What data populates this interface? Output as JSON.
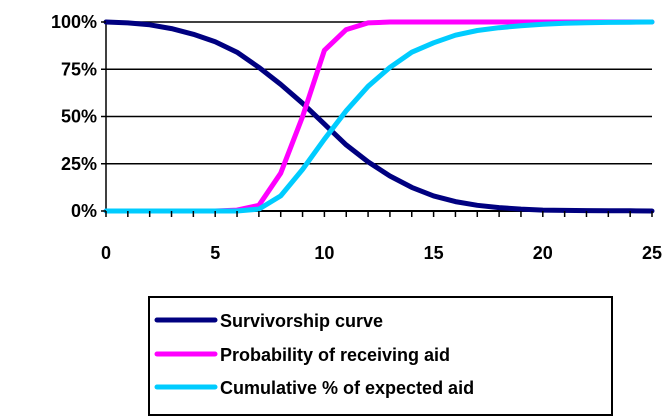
{
  "chart_data": {
    "type": "line",
    "x": [
      0,
      1,
      2,
      3,
      4,
      5,
      6,
      7,
      8,
      9,
      10,
      11,
      12,
      13,
      14,
      15,
      16,
      17,
      18,
      19,
      20,
      21,
      22,
      23,
      24,
      25
    ],
    "xlim": [
      0,
      25
    ],
    "ylim": [
      0,
      100
    ],
    "x_ticks": [
      "0",
      "5",
      "10",
      "15",
      "20",
      "25"
    ],
    "x_tick_values": [
      0,
      5,
      10,
      15,
      20,
      25
    ],
    "y_ticks": [
      "0%",
      "25%",
      "50%",
      "75%",
      "100%"
    ],
    "y_tick_values": [
      0,
      25,
      50,
      75,
      100
    ],
    "grid": "horizontal",
    "legend_position": "bottom",
    "series": [
      {
        "name": "Survivorship curve",
        "color": "#000080",
        "values": [
          100,
          99.5,
          98.5,
          96.5,
          93.5,
          89.5,
          84,
          76,
          67,
          57,
          46,
          35,
          26,
          18.5,
          12.5,
          8,
          5,
          3,
          1.8,
          1,
          0.5,
          0.3,
          0.2,
          0.1,
          0.1,
          0
        ]
      },
      {
        "name": "Probability of receiving aid",
        "color": "#ff00ff",
        "values": [
          0,
          0,
          0,
          0,
          0,
          0,
          0.5,
          3,
          20,
          50,
          85,
          96,
          99.5,
          100,
          100,
          100,
          100,
          100,
          100,
          100,
          100,
          100,
          100,
          100,
          100,
          100
        ]
      },
      {
        "name": "Cumulative % of expected aid",
        "color": "#00ccff",
        "values": [
          0,
          0,
          0,
          0,
          0,
          0,
          0,
          1,
          8,
          22,
          38,
          53,
          66,
          76,
          84,
          89,
          93,
          95.5,
          97,
          98,
          98.8,
          99.3,
          99.6,
          99.8,
          99.9,
          100
        ]
      }
    ]
  }
}
